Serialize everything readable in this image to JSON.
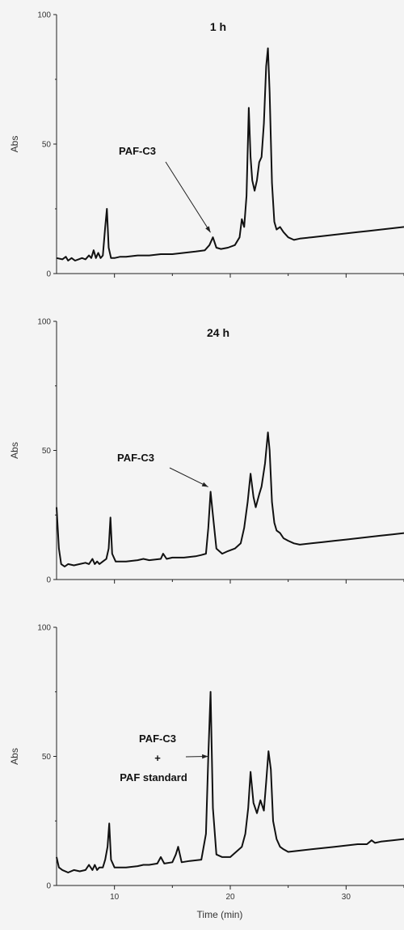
{
  "chart_data": [
    {
      "type": "line",
      "title": "1 h",
      "xlabel": "",
      "ylabel": "Abs",
      "xlim": [
        5,
        35
      ],
      "ylim": [
        0,
        100
      ],
      "yticks": [
        0,
        50,
        100
      ],
      "ytick_labels": [
        "0",
        "50",
        "100"
      ],
      "xticks": [
        10,
        20,
        30
      ],
      "xtick_labels": [],
      "annotations": [
        {
          "text": "PAF-C3",
          "arrow_to": [
            18.5,
            14
          ]
        }
      ],
      "series": [
        {
          "x": [
            5.0,
            5.5,
            5.8,
            6.0,
            6.3,
            6.6,
            6.9,
            7.2,
            7.5,
            7.8,
            8.0,
            8.2,
            8.4,
            8.6,
            8.8,
            9.0,
            9.2,
            9.35,
            9.5,
            9.7,
            10.0,
            10.5,
            11.0,
            12.0,
            13.0,
            14.0,
            15.0,
            16.0,
            17.0,
            17.8,
            18.2,
            18.5,
            18.8,
            19.2,
            19.8,
            20.4,
            20.8,
            21.0,
            21.2,
            21.4,
            21.6,
            21.75,
            21.9,
            22.1,
            22.3,
            22.5,
            22.7,
            22.9,
            23.1,
            23.25,
            23.4,
            23.6,
            23.8,
            24.0,
            24.3,
            24.6,
            25.0,
            25.5,
            26.0,
            27.0,
            28.0,
            29.0,
            30.0,
            31.0,
            32.0,
            33.0,
            34.0,
            35.0
          ],
          "values": [
            6,
            5.5,
            6.5,
            5,
            6,
            5,
            5.5,
            6,
            5.5,
            7,
            6,
            9,
            6,
            8,
            6,
            7,
            18,
            25,
            10,
            6,
            6,
            6.5,
            6.5,
            7,
            7,
            7.5,
            7.5,
            8,
            8.5,
            9,
            11,
            14,
            10,
            9.5,
            10,
            11,
            14,
            21,
            18,
            30,
            64,
            45,
            36,
            32,
            36,
            43,
            45,
            58,
            80,
            87,
            70,
            35,
            20,
            17,
            18,
            16,
            14,
            13,
            13.5,
            14,
            14.5,
            15,
            15.5,
            16,
            16.5,
            17,
            17.5,
            18
          ]
        }
      ]
    },
    {
      "type": "line",
      "title": "24 h",
      "xlabel": "",
      "ylabel": "Abs",
      "xlim": [
        5,
        35
      ],
      "ylim": [
        0,
        100
      ],
      "yticks": [
        0,
        50,
        100
      ],
      "ytick_labels": [
        "0",
        "50",
        "100"
      ],
      "xticks": [
        10,
        20,
        30
      ],
      "xtick_labels": [],
      "annotations": [
        {
          "text": "PAF-C3",
          "arrow_to": [
            18.3,
            34
          ]
        }
      ],
      "series": [
        {
          "x": [
            5.0,
            5.2,
            5.4,
            5.7,
            6.0,
            6.5,
            7.0,
            7.5,
            7.8,
            8.1,
            8.3,
            8.5,
            8.7,
            9.0,
            9.3,
            9.5,
            9.65,
            9.8,
            10.1,
            11.0,
            12.0,
            12.5,
            13.0,
            14.0,
            14.2,
            14.5,
            15.0,
            16.0,
            17.0,
            17.5,
            17.9,
            18.1,
            18.3,
            18.5,
            18.8,
            19.3,
            19.8,
            20.4,
            20.9,
            21.2,
            21.5,
            21.75,
            22.0,
            22.2,
            22.5,
            22.7,
            23.0,
            23.25,
            23.4,
            23.6,
            23.8,
            24.0,
            24.3,
            24.6,
            25.0,
            25.5,
            26.0,
            27.0,
            28.0,
            29.0,
            30.0,
            31.0,
            32.0,
            33.0,
            34.0,
            35.0
          ],
          "values": [
            28,
            12,
            6,
            5,
            6,
            5.5,
            6,
            6.5,
            6,
            8,
            6,
            7,
            6,
            7,
            8,
            12,
            24,
            10,
            7,
            7,
            7.5,
            8,
            7.5,
            8,
            10,
            8,
            8.5,
            8.5,
            9,
            9.5,
            10,
            20,
            34,
            25,
            12,
            10,
            11,
            12,
            14,
            20,
            30,
            41,
            32,
            28,
            33,
            36,
            45,
            57,
            50,
            30,
            22,
            19,
            18,
            16,
            15,
            14,
            13.5,
            14,
            14.5,
            15,
            15.5,
            16,
            16.5,
            17,
            17.5,
            18
          ]
        }
      ]
    },
    {
      "type": "line",
      "title": "",
      "xlabel": "Time (min)",
      "ylabel": "Abs",
      "xlim": [
        5,
        35
      ],
      "ylim": [
        0,
        100
      ],
      "yticks": [
        0,
        50,
        100
      ],
      "ytick_labels": [
        "0",
        "50",
        "100"
      ],
      "xticks": [
        10,
        20,
        30
      ],
      "xtick_labels": [
        "10",
        "20",
        "30"
      ],
      "annotations": [
        {
          "text_lines": [
            "PAF-C3",
            "+",
            "PAF standard"
          ],
          "arrow_to": [
            18.3,
            50
          ]
        }
      ],
      "series": [
        {
          "x": [
            5.0,
            5.2,
            5.5,
            6.0,
            6.5,
            7.0,
            7.5,
            7.8,
            8.1,
            8.3,
            8.5,
            8.7,
            9.0,
            9.2,
            9.4,
            9.55,
            9.7,
            10.0,
            11.0,
            12.0,
            12.5,
            13.0,
            13.7,
            14.0,
            14.3,
            15.0,
            15.3,
            15.5,
            15.8,
            16.5,
            17.5,
            17.9,
            18.1,
            18.3,
            18.5,
            18.8,
            19.3,
            20.0,
            20.5,
            21.0,
            21.3,
            21.55,
            21.75,
            22.0,
            22.3,
            22.6,
            22.9,
            23.1,
            23.3,
            23.5,
            23.7,
            24.0,
            24.3,
            24.6,
            25.0,
            26.0,
            27.0,
            28.0,
            29.0,
            30.0,
            31.0,
            31.8,
            32.2,
            32.5,
            33.0,
            34.0,
            35.0
          ],
          "values": [
            11,
            7,
            6,
            5,
            6,
            5.5,
            6,
            8,
            6,
            8,
            6,
            7,
            7,
            10,
            15,
            24,
            10,
            7,
            7,
            7.5,
            8,
            8,
            8.5,
            11,
            8.5,
            9,
            12,
            15,
            9,
            9.5,
            10,
            20,
            50,
            75,
            30,
            12,
            11,
            11,
            13,
            15,
            20,
            30,
            44,
            32,
            28,
            33,
            29,
            40,
            52,
            45,
            25,
            18,
            15,
            14,
            13,
            13.5,
            14,
            14.5,
            15,
            15.5,
            16,
            16,
            17.5,
            16.5,
            17,
            17.5,
            18
          ]
        }
      ]
    }
  ]
}
